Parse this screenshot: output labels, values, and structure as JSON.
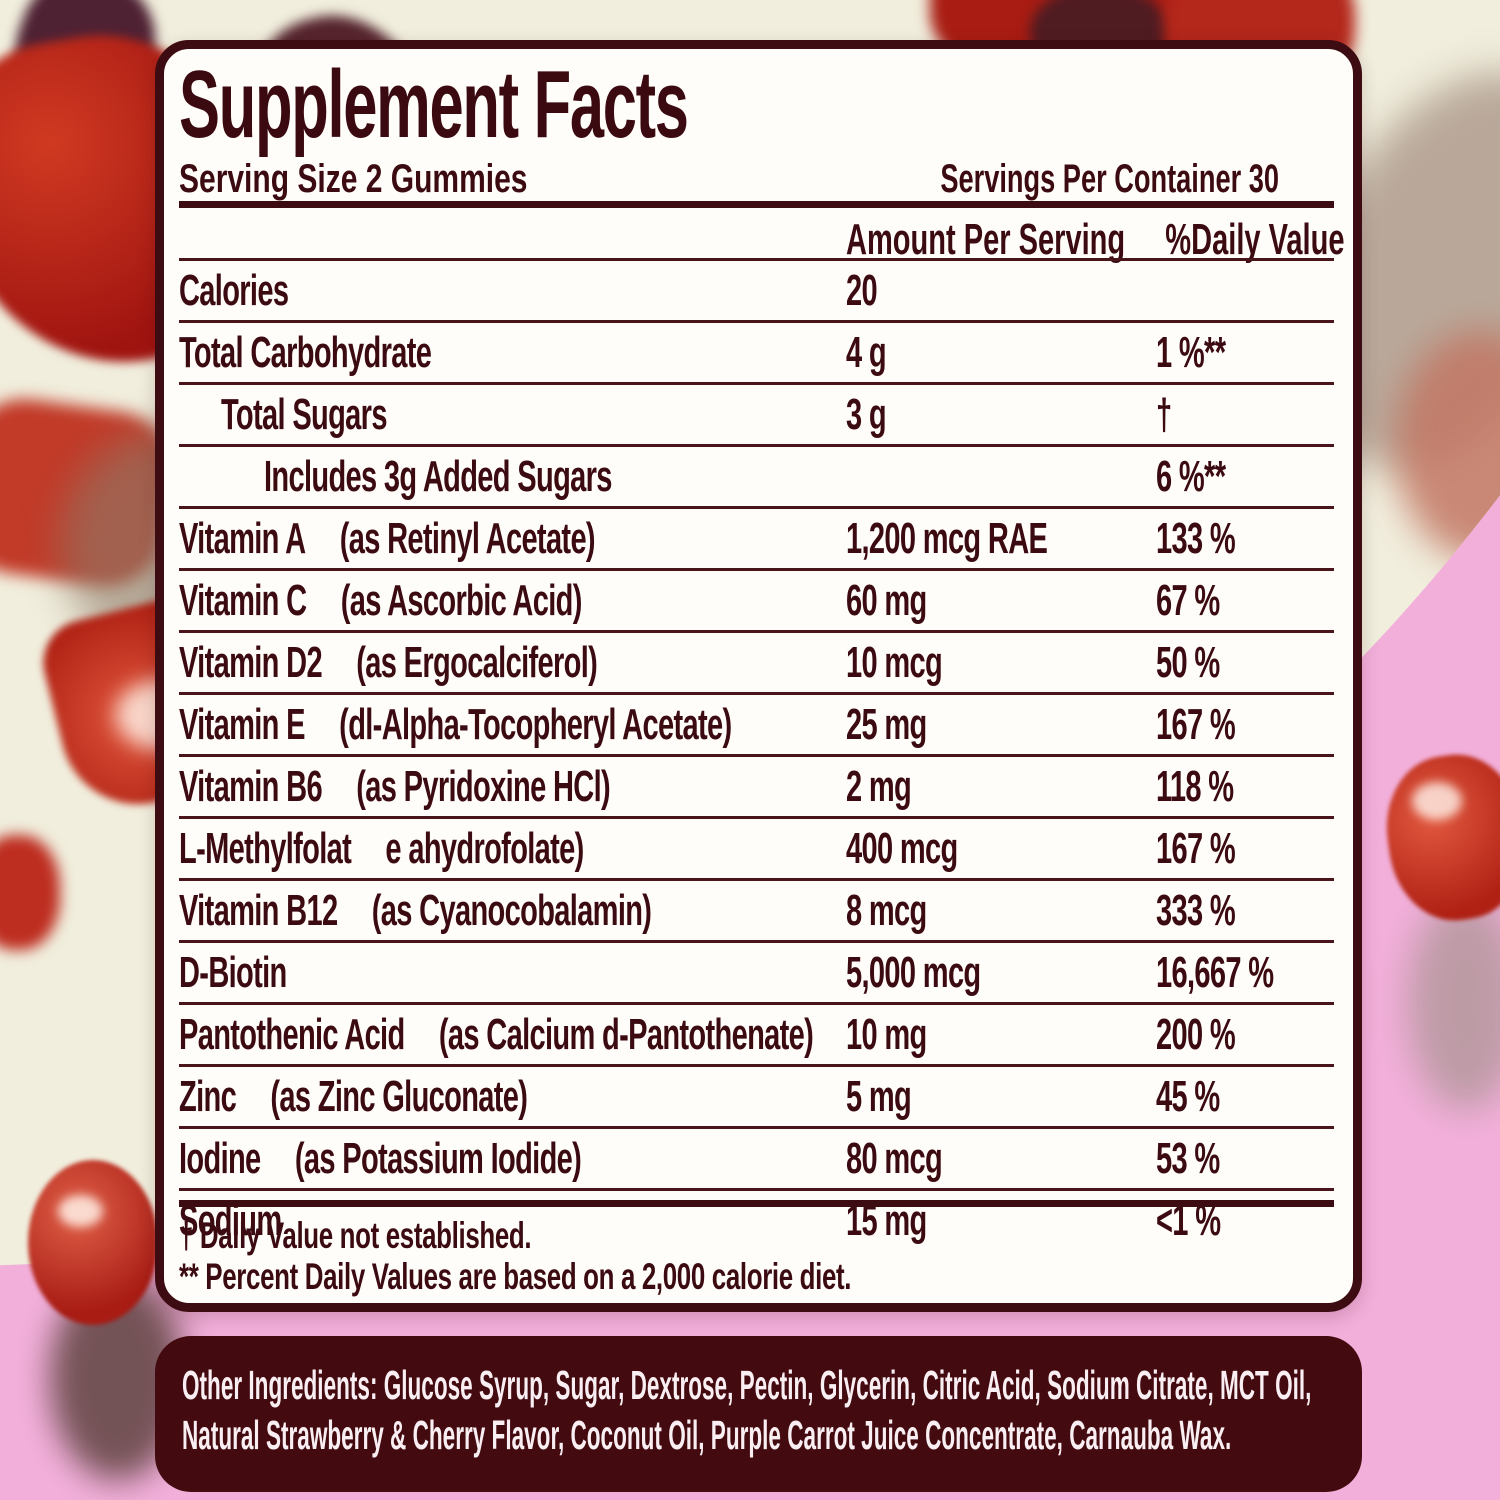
{
  "background": {
    "pink": "#f2afda",
    "cream": "#f1eedd",
    "gummy_red": "#b02114",
    "gummy_dark_purple": "#4e2133"
  },
  "panel": {
    "title": "Supplement Facts",
    "serving_size": "Serving Size 2 Gummies",
    "servings_per_container": "Servings Per Container 30",
    "columns": {
      "amount": "Amount Per Serving",
      "daily_value": "%Daily Value"
    },
    "rows": [
      {
        "name": "Calories",
        "qual": "",
        "amount": "20",
        "dv": "",
        "indent": 0
      },
      {
        "name": "Total Carbohydrate",
        "qual": "",
        "amount": "4 g",
        "dv": "1 %**",
        "indent": 0
      },
      {
        "name": "Total Sugars",
        "qual": "",
        "amount": "3 g",
        "dv": "†",
        "indent": 1
      },
      {
        "name": "Includes 3g Added Sugars",
        "qual": "",
        "amount": "",
        "dv": "6 %**",
        "indent": 2
      },
      {
        "name": "Vitamin A",
        "qual": "(as Retinyl Acetate)",
        "amount": "1,200 mcg RAE",
        "dv": "133 %",
        "indent": 0
      },
      {
        "name": "Vitamin C",
        "qual": "(as Ascorbic Acid)",
        "amount": "60 mg",
        "dv": "67 %",
        "indent": 0
      },
      {
        "name": "Vitamin D2",
        "qual": "(as Ergocalciferol)",
        "amount": "10 mcg",
        "dv": "50 %",
        "indent": 0
      },
      {
        "name": "Vitamin E",
        "qual": "(dl-Alpha-Tocopheryl Acetate)",
        "amount": "25 mg",
        "dv": "167 %",
        "indent": 0
      },
      {
        "name": "Vitamin B6",
        "qual": "(as Pyridoxine HCl)",
        "amount": "2 mg",
        "dv": "118 %",
        "indent": 0
      },
      {
        "name": "L-Methylfolat",
        "qual": "e ahydrofolate)",
        "amount": "400 mcg",
        "dv": "167 %",
        "indent": 0
      },
      {
        "name": "Vitamin B12",
        "qual": "(as Cyanocobalamin)",
        "amount": "8 mcg",
        "dv": "333 %",
        "indent": 0
      },
      {
        "name": "D-Biotin",
        "qual": "",
        "amount": "5,000 mcg",
        "dv": "16,667 %",
        "indent": 0
      },
      {
        "name": "Pantothenic Acid",
        "qual": "(as Calcium d-Pantothenate)",
        "amount": "10 mg",
        "dv": "200 %",
        "indent": 0
      },
      {
        "name": "Zinc",
        "qual": "(as Zinc Gluconate)",
        "amount": "5 mg",
        "dv": "45 %",
        "indent": 0
      },
      {
        "name": "Iodine",
        "qual": "(as Potassium Iodide)",
        "amount": "80 mcg",
        "dv": "53 %",
        "indent": 0
      },
      {
        "name": "Sodium",
        "qual": "",
        "amount": "15 mg",
        "dv": "<1 %",
        "indent": 0
      }
    ],
    "footnotes": [
      "† Daily Value not established.",
      "** Percent Daily Values are based on a 2,000 calorie diet."
    ]
  },
  "other_ingredients": {
    "label": "Other Ingredients:",
    "text": " Glucose Syrup, Sugar, Dextrose, Pectin, Glycerin, Citric Acid, Sodium Citrate, MCT Oil, Natural Strawberry & Cherry Flavor, Coconut Oil, Purple Carrot Juice Concentrate, Carnauba Wax."
  }
}
